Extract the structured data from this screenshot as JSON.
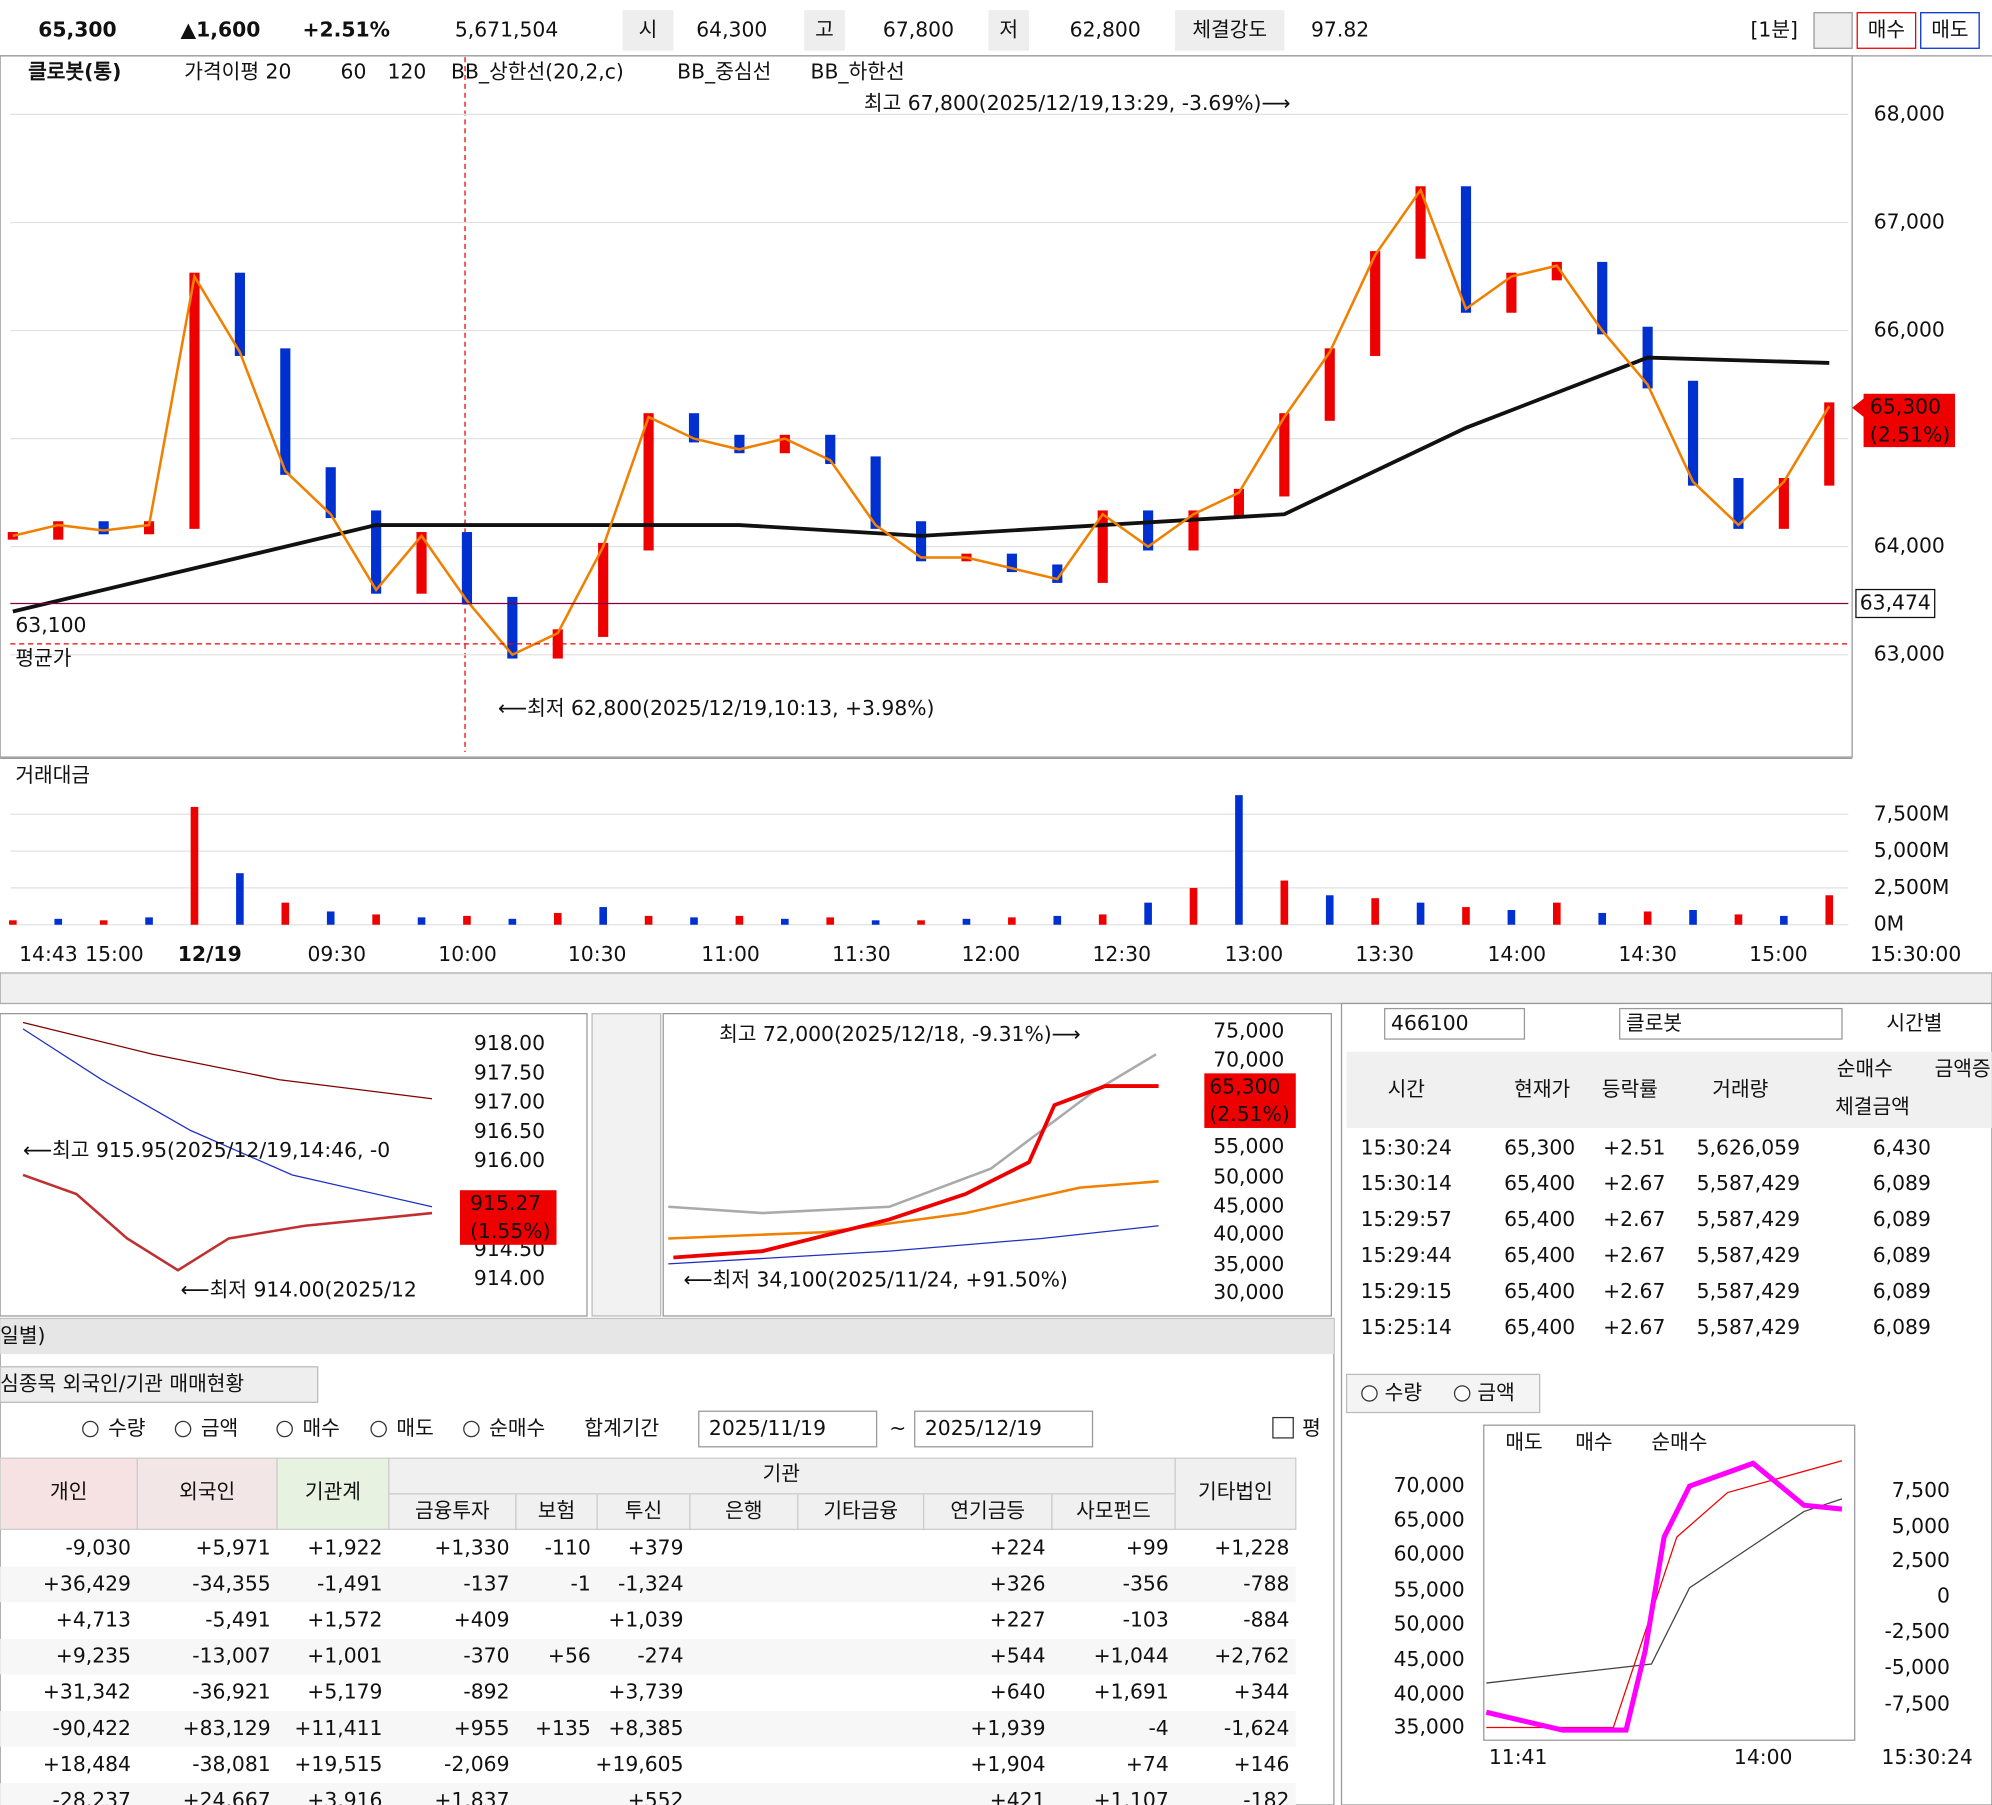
{
  "header": {
    "price": "65,300",
    "change": "▲1,600",
    "rate": "+2.51%",
    "volume": "5,671,504",
    "open_label": "시",
    "open": "64,300",
    "high_label": "고",
    "high": "67,800",
    "low_label": "저",
    "low": "62,800",
    "strength_label": "체결강도",
    "strength": "97.82",
    "period": "[1분]",
    "buy": "매수",
    "sell": "매도"
  },
  "main_chart": {
    "legend": [
      {
        "text": "클로봇(통)",
        "color": "#111111"
      },
      {
        "text": "가격이평 20",
        "color": "#f08000"
      },
      {
        "text": "60",
        "color": "#20a040"
      },
      {
        "text": "120",
        "color": "#111111"
      },
      {
        "text": "BB_상한선(20,2,c)",
        "color": "#bbbbbb"
      },
      {
        "text": "BB_중심선",
        "color": "#f08000"
      },
      {
        "text": "BB_하한선",
        "color": "#bbbbbb"
      }
    ],
    "high_note": "최고 67,800(2025/12/19,13:29, -3.69%)⟶",
    "low_note": "⟵최저 62,800(2025/12/19,10:13, +3.98%)",
    "avg_price": "63,100",
    "avg_name": "평균가",
    "current_price": "65,300",
    "current_rate": "(2.51%)",
    "line_label": "63,474",
    "line_value": 63474,
    "avg_value": 63100,
    "ylim": [
      62100,
      68530
    ],
    "yticks": [
      {
        "value": 63000,
        "label": "63,000"
      },
      {
        "value": 64000,
        "label": "64,000"
      },
      {
        "value": 65000,
        "label": "65,000"
      },
      {
        "value": 66000,
        "label": "66,000"
      },
      {
        "value": 67000,
        "label": "67,000"
      },
      {
        "value": 68000,
        "label": "68,000"
      }
    ],
    "close": [
      64100,
      64200,
      64150,
      64200,
      66500,
      65800,
      64700,
      64300,
      63600,
      64100,
      63500,
      63000,
      63200,
      64000,
      65200,
      65000,
      64900,
      65000,
      64800,
      64200,
      63900,
      63900,
      63800,
      63700,
      64300,
      64000,
      64300,
      64500,
      65200,
      65800,
      66700,
      67300,
      66200,
      66500,
      66600,
      66000,
      65500,
      64600,
      64200,
      64600,
      65300
    ],
    "ma120": [
      63400,
      63800,
      64200,
      64200,
      64200,
      64100,
      64200,
      64300,
      65100,
      65750,
      65700
    ],
    "x_labels": [
      "14:43",
      "15:00",
      "12/19",
      "09:30",
      "10:00",
      "10:30",
      "11:00",
      "11:30",
      "12:00",
      "12:30",
      "13:00",
      "13:30",
      "14:00",
      "14:30",
      "15:00",
      "15:30:00"
    ]
  },
  "volume_chart": {
    "title": "거래대금",
    "ylim": [
      0,
      11300
    ],
    "yticks": [
      {
        "value": 0,
        "label": "0M"
      },
      {
        "value": 2500,
        "label": "2,500M"
      },
      {
        "value": 5000,
        "label": "5,000M"
      },
      {
        "value": 7500,
        "label": "7,500M"
      }
    ],
    "values": [
      300,
      400,
      300,
      500,
      8000,
      3500,
      1500,
      900,
      700,
      500,
      600,
      400,
      800,
      1200,
      600,
      500,
      600,
      400,
      500,
      300,
      300,
      400,
      500,
      600,
      700,
      1500,
      2500,
      8800,
      3000,
      2000,
      1800,
      1500,
      1200,
      1000,
      1500,
      800,
      900,
      1000,
      700,
      600,
      2000
    ]
  },
  "index_chart": {
    "ticks": [
      "918.00",
      "917.50",
      "917.00",
      "916.50",
      "916.00",
      "914.50",
      "914.00"
    ],
    "current": "915.27",
    "rate": "(1.55%)",
    "high_note": "⟵최고 915.95(2025/12/19,14:46, -0",
    "low_note": "⟵최저 914.00(2025/12"
  },
  "daily_chart": {
    "ticks": [
      "75,000",
      "70,000",
      "55,000",
      "50,000",
      "45,000",
      "40,000",
      "35,000",
      "30,000"
    ],
    "current": "65,300",
    "rate": "(2.51%)",
    "high_note": "최고 72,000(2025/12/18, -9.31%)⟶",
    "low_note": "⟵최저 34,100(2025/11/24, +91.50%)"
  },
  "trades": {
    "code": "466100",
    "name": "클로봇",
    "mode": "시간별",
    "headers": [
      "시간",
      "현재가",
      "등락률",
      "거래량",
      "순매수",
      "금액증",
      "체결금액"
    ],
    "rows": [
      [
        "15:30:24",
        "65,300",
        "+2.51",
        "5,626,059",
        "6,430"
      ],
      [
        "15:30:14",
        "65,400",
        "+2.67",
        "5,587,429",
        "6,089"
      ],
      [
        "15:29:57",
        "65,400",
        "+2.67",
        "5,587,429",
        "6,089"
      ],
      [
        "15:29:44",
        "65,400",
        "+2.67",
        "5,587,429",
        "6,089"
      ],
      [
        "15:29:15",
        "65,400",
        "+2.67",
        "5,587,429",
        "6,089"
      ],
      [
        "15:25:14",
        "65,400",
        "+2.67",
        "5,587,429",
        "6,089"
      ]
    ],
    "radios": [
      "수량",
      "금액"
    ],
    "legend": [
      "매도",
      "매수",
      "순매수"
    ],
    "left_ticks": [
      "70,000",
      "65,000",
      "60,000",
      "55,000",
      "50,000",
      "45,000",
      "40,000",
      "35,000"
    ],
    "right_ticks": [
      "7,500",
      "5,000",
      "2,500",
      "0",
      "-2,500",
      "-5,000",
      "-7,500"
    ],
    "x_labels": [
      "11:41",
      "14:00",
      "15:30:24"
    ]
  },
  "investors": {
    "title": "일별)",
    "tab": "심종목 외국인/기관 매매현황",
    "radios": [
      "수량",
      "금액",
      "매수",
      "매도",
      "순매수"
    ],
    "period_label": "합계기간",
    "from": "2025/11/19",
    "tilde": "~",
    "to": "2025/12/19",
    "check": "평",
    "headers": [
      "개인",
      "외국인",
      "기관계",
      "금융투자",
      "보험",
      "투신",
      "은행",
      "기타금융",
      "연기금등",
      "사모펀드",
      "기타법인"
    ],
    "group": "기관",
    "rows": [
      [
        "-9,030",
        "+5,971",
        "+1,922",
        "+1,330",
        "-110",
        "+379",
        null,
        null,
        "+224",
        "+99",
        "+1,228"
      ],
      [
        "+36,429",
        "-34,355",
        "-1,491",
        "-137",
        "-1",
        "-1,324",
        null,
        null,
        "+326",
        "-356",
        "-788"
      ],
      [
        "+4,713",
        "-5,491",
        "+1,572",
        "+409",
        null,
        "+1,039",
        null,
        null,
        "+227",
        "-103",
        "-884"
      ],
      [
        "+9,235",
        "-13,007",
        "+1,001",
        "-370",
        "+56",
        "-274",
        null,
        null,
        "+544",
        "+1,044",
        "+2,762"
      ],
      [
        "+31,342",
        "-36,921",
        "+5,179",
        "-892",
        null,
        "+3,739",
        null,
        null,
        "+640",
        "+1,691",
        "+344"
      ],
      [
        "-90,422",
        "+83,129",
        "+11,411",
        "+955",
        "+135",
        "+8,385",
        null,
        null,
        "+1,939",
        "-4",
        "-1,624"
      ],
      [
        "+18,484",
        "-38,081",
        "+19,515",
        "-2,069",
        null,
        "+19,605",
        null,
        null,
        "+1,904",
        "+74",
        "+146"
      ],
      [
        "-28,237",
        "+24,667",
        "+3,916",
        "+1,837",
        null,
        "+552",
        null,
        null,
        "+421",
        "+1,107",
        "-182"
      ]
    ]
  }
}
